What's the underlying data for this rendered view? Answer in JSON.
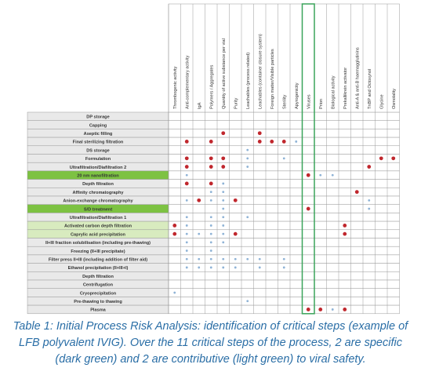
{
  "table": {
    "columns": [
      "Thrombogenic activity",
      "Anti-complementary activity",
      "IgA",
      "Polymers / Aggregates",
      "Quantity of active substance per vial",
      "Purity",
      "Leachables (process related)",
      "Leachables (container closure system)",
      "Foreign matter/Visible particles",
      "Sterility",
      "Apyrogenicity",
      "Viruses",
      "Prion",
      "Biological activity",
      "Prekallikrein activator",
      "Anti-A & anti-B haemagglutinins",
      "TnBP and Octoxynol",
      "Glycine",
      "Osmolality"
    ],
    "rows": [
      "DP storage",
      "Capping",
      "Aseptic filling",
      "Final sterilizing filtration",
      "DS storage",
      "Formulation",
      "Ultrafiltration/Diafiltration 2",
      "20 nm nanofiltration",
      "Depth filtration",
      "Affinity chromatography",
      "Anion-exchange chromatography",
      "S/D treatment",
      "Ultrafiltration/Diafiltration 1",
      "Activated carbon depth filtration",
      "Caprylic acid precipitation",
      "II+III fraction solubilisation (including pre-thawing)",
      "Freezing (II+III precipitate)",
      "Filter press II+III (including addition of filter aid)",
      "Ethanol precipitation (II+III+I)",
      "Depth filtration",
      "Centrifugation",
      "Cryoprecipitation",
      "Pre-thawing to thawing",
      "Plasma"
    ]
  },
  "caption": "Table 1: Initial Process Risk Analysis: identification of critical steps (example of LFB polyvalent IVIG). Over the 11 critical steps of the process, 2 are specific (dark green) and 2 are contributive (light green) to viral safety."
}
